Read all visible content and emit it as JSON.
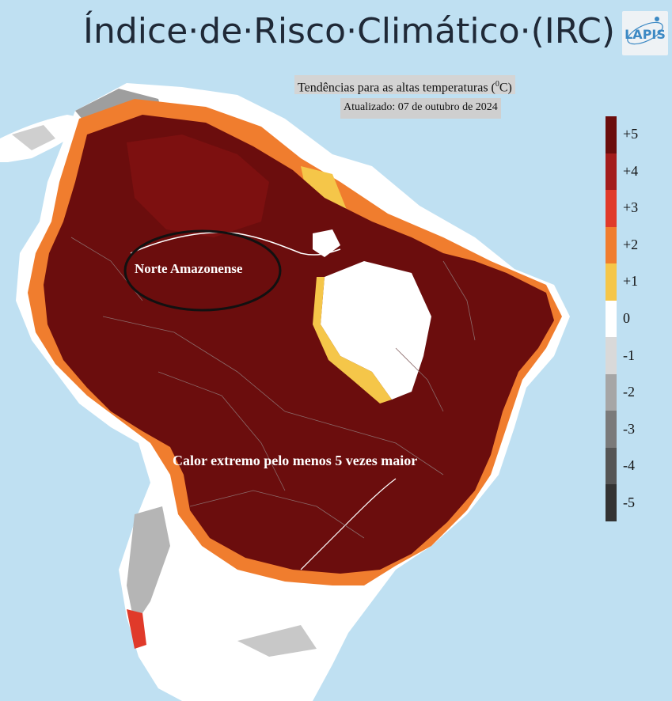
{
  "header": {
    "title": "Índice·de·Risco·Climático·(IRC)",
    "logo_text": "LAPIS"
  },
  "subtitle": {
    "text": "Tendências para as altas temperaturas (",
    "sup": "0",
    "unit": "C)"
  },
  "updated": "Atualizado: 07 de outubro de 2024",
  "legend": {
    "items": [
      {
        "label": "+5",
        "color": "#6b0d0d"
      },
      {
        "label": "+4",
        "color": "#a31c1c"
      },
      {
        "label": "+3",
        "color": "#e03a2a"
      },
      {
        "label": "+2",
        "color": "#f07d2e"
      },
      {
        "label": "+1",
        "color": "#f5c649"
      },
      {
        "label": "0",
        "color": "#ffffff"
      },
      {
        "label": "-1",
        "color": "#d9d9d9"
      },
      {
        "label": "-2",
        "color": "#a6a6a6"
      },
      {
        "label": "-3",
        "color": "#7a7a7a"
      },
      {
        "label": "-4",
        "color": "#555555"
      },
      {
        "label": "-5",
        "color": "#333333"
      }
    ]
  },
  "annotations": {
    "norte": "Norte Amazonense",
    "calor": "Calor extremo pelo menos 5 vezes maior"
  },
  "colors": {
    "ocean": "#bfe0f2",
    "extreme": "#6b0d0d",
    "neutral": "#ffffff"
  }
}
